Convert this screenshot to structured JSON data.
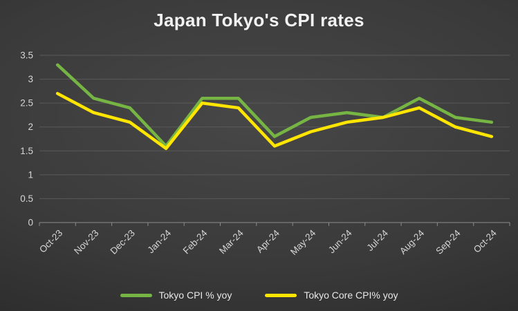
{
  "colors": {
    "grid": "#5a5a5a",
    "axis": "#8c8c8c",
    "tick_label": "#d6d6d6",
    "title": "#f2f2f2",
    "legend_text": "#e8e8e8"
  },
  "chart_data": {
    "type": "line",
    "title": "Japan Tokyo's CPI rates",
    "categories": [
      "Oct-23",
      "Nov-23",
      "Dec-23",
      "Jan-24",
      "Feb-24",
      "Mar-24",
      "Apr-24",
      "May-24",
      "Jun-24",
      "Jul-24",
      "Aug-24",
      "Sep-24",
      "Oct-24"
    ],
    "series": [
      {
        "name": "Tokyo CPI % yoy",
        "color": "#76B543",
        "values": [
          3.3,
          2.6,
          2.4,
          1.6,
          2.6,
          2.6,
          1.8,
          2.2,
          2.3,
          2.2,
          2.6,
          2.2,
          2.1
        ]
      },
      {
        "name": "Tokyo Core CPI% yoy",
        "color": "#FFE500",
        "values": [
          2.7,
          2.3,
          2.1,
          1.55,
          2.5,
          2.4,
          1.6,
          1.9,
          2.1,
          2.2,
          2.4,
          2.0,
          1.8
        ]
      }
    ],
    "xlabel": "",
    "ylabel": "",
    "ylim": [
      0,
      3.5
    ],
    "yticks": [
      0,
      0.5,
      1,
      1.5,
      2,
      2.5,
      3,
      3.5
    ],
    "grid": true,
    "legend_position": "bottom"
  }
}
